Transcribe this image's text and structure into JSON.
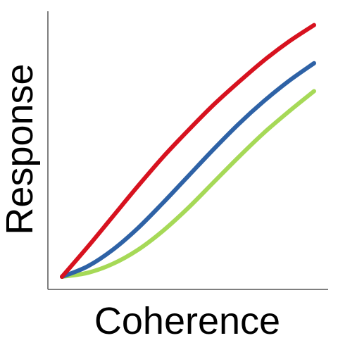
{
  "chart_data": {
    "type": "line",
    "xlabel": "Coherence",
    "ylabel": "Response",
    "xlim": [
      0,
      1
    ],
    "ylim": [
      0,
      1
    ],
    "grid": false,
    "x": [
      0,
      0.1,
      0.2,
      0.3,
      0.4,
      0.5,
      0.6,
      0.7,
      0.8,
      0.9,
      1.0
    ],
    "series": [
      {
        "color": "#d7121f",
        "values": [
          0.0,
          0.115,
          0.235,
          0.355,
          0.47,
          0.575,
          0.675,
          0.765,
          0.85,
          0.925,
          0.99
        ]
      },
      {
        "color": "#2e62a6",
        "values": [
          0.0,
          0.04,
          0.105,
          0.19,
          0.29,
          0.395,
          0.5,
          0.6,
          0.69,
          0.77,
          0.84
        ]
      },
      {
        "color": "#a6d957",
        "values": [
          0.0,
          0.015,
          0.05,
          0.105,
          0.18,
          0.27,
          0.37,
          0.47,
          0.565,
          0.65,
          0.73
        ]
      }
    ]
  }
}
